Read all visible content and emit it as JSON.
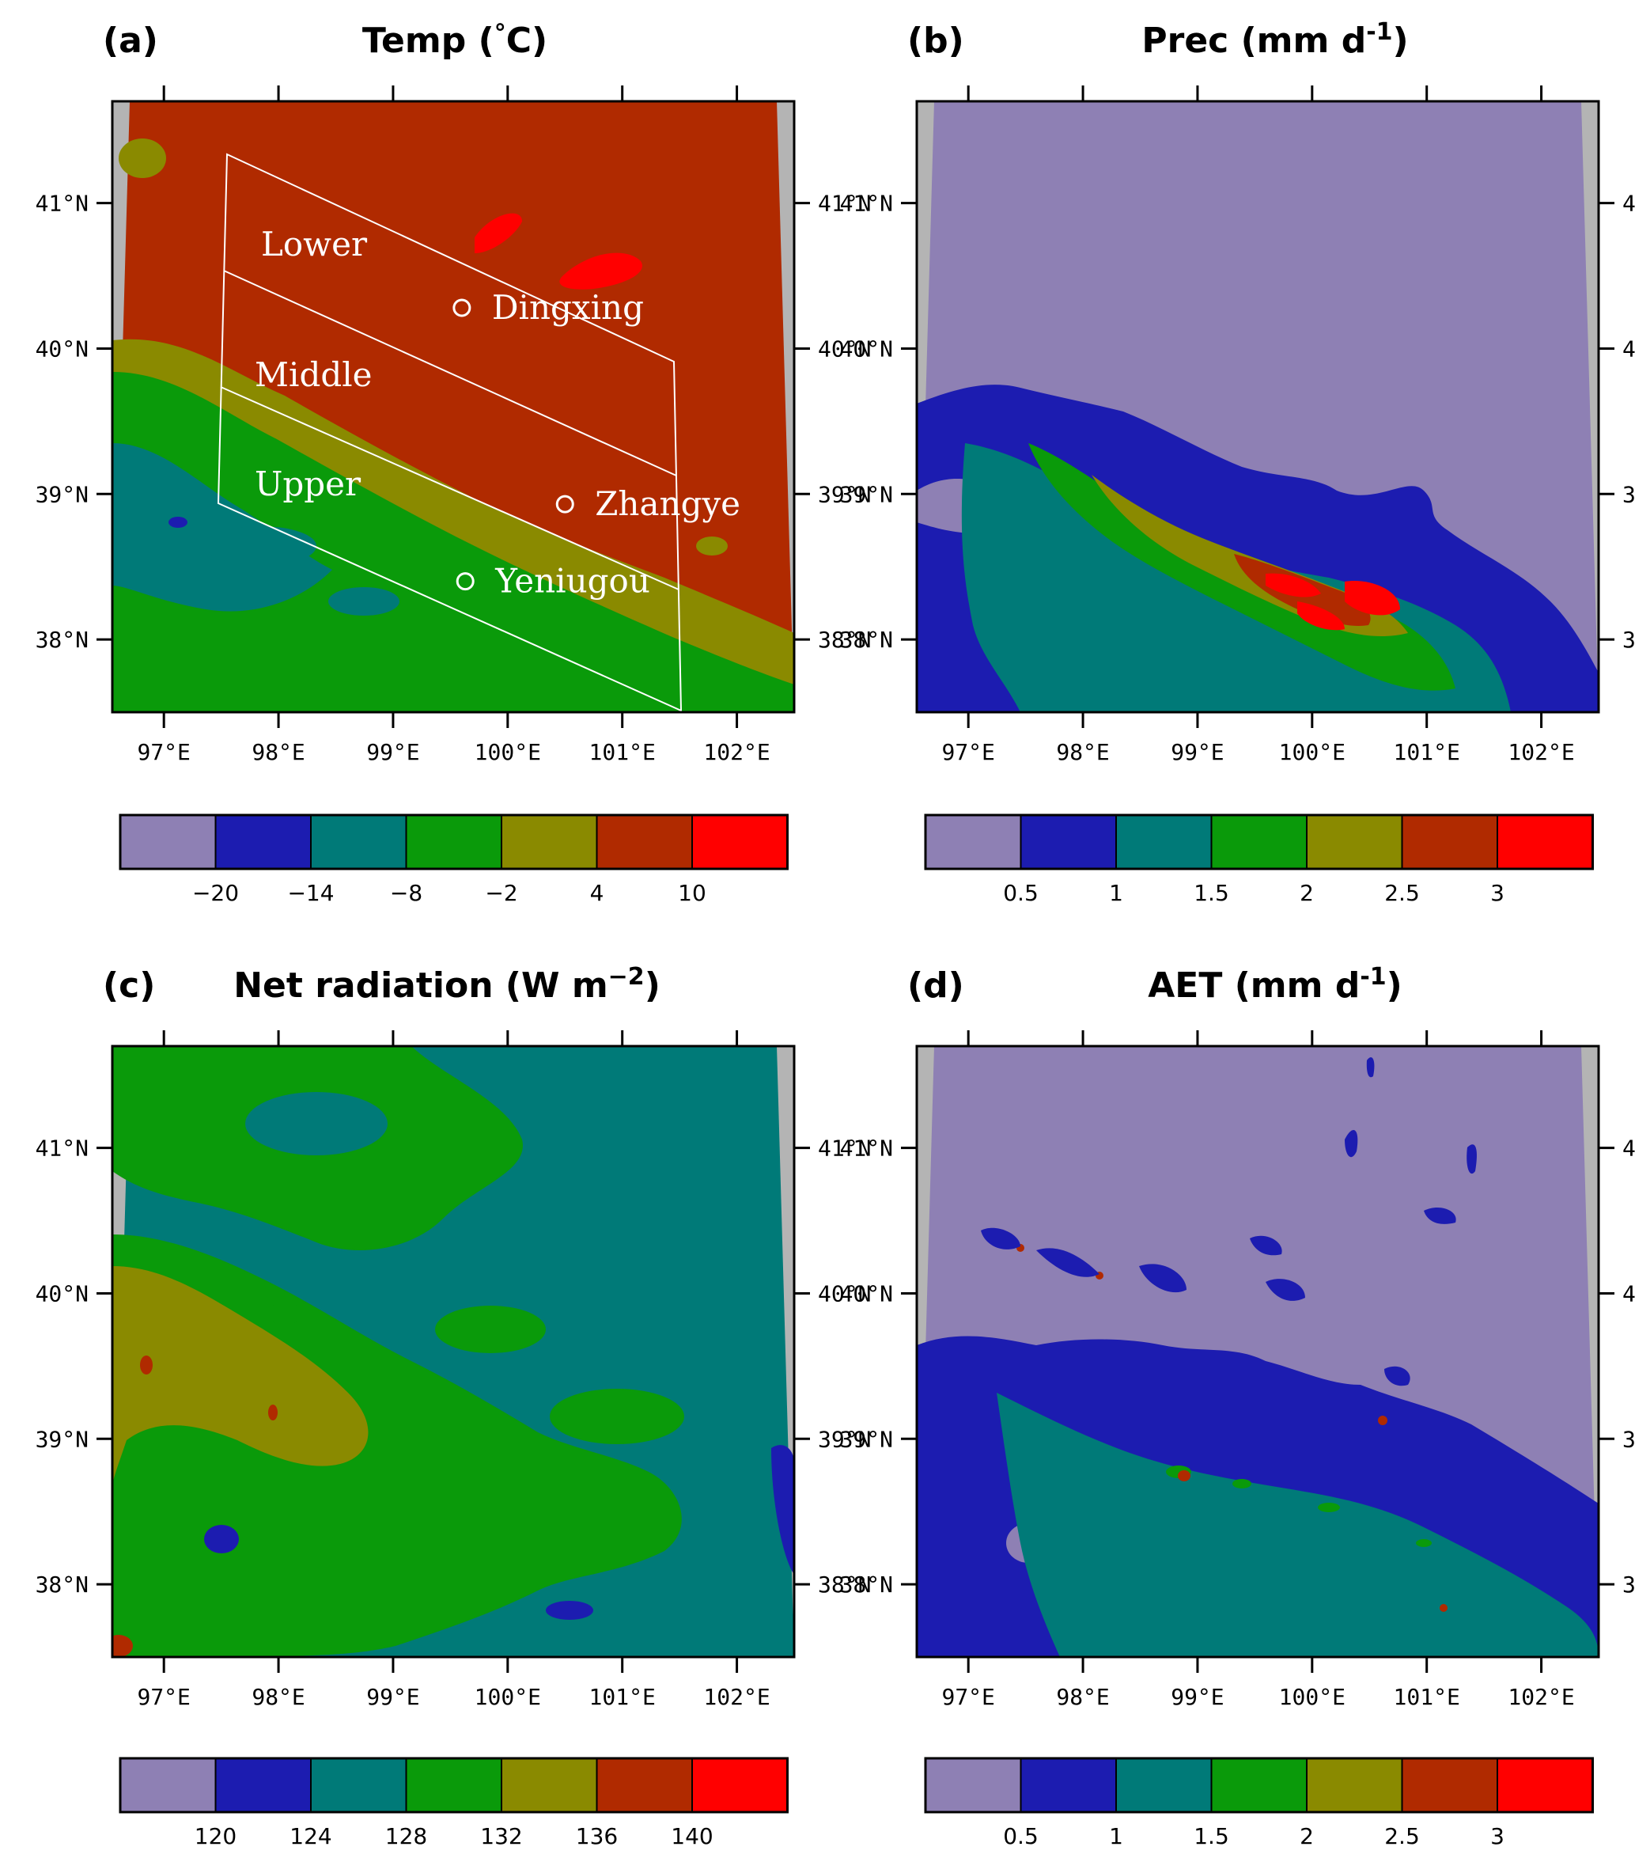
{
  "colors": {
    "lavender": "#8e80b4",
    "blue": "#1c1cb0",
    "teal": "#007a78",
    "green": "#0a9a0a",
    "olive": "#8a8a00",
    "rust": "#b02a00",
    "red": "#ff0000",
    "grey": "#b4b4b4"
  },
  "axes": {
    "x_ticks": [
      "97°E",
      "98°E",
      "99°E",
      "100°E",
      "101°E",
      "102°E"
    ],
    "x_values": [
      97,
      98,
      99,
      100,
      101,
      102
    ],
    "y_ticks": [
      "41°N",
      "40°N",
      "39°N",
      "38°N"
    ],
    "y_values": [
      41,
      40,
      39,
      38
    ],
    "xlim": [
      96.55,
      102.5
    ],
    "ylim": [
      37.5,
      41.7
    ]
  },
  "chart_data": [
    {
      "type": "heatmap",
      "panel": "(a)",
      "title": "Temp (°C)",
      "colorbar": [
        "-20",
        "-14",
        "-8",
        "-2",
        "4",
        "10"
      ],
      "colorbar_values": [
        -20,
        -14,
        -8,
        -2,
        4,
        10
      ],
      "regions": [
        "Lower",
        "Middle",
        "Upper"
      ],
      "sites": [
        {
          "name": "Dingxing",
          "lon": 99.6,
          "lat": 40.28
        },
        {
          "name": "Zhangye",
          "lon": 100.5,
          "lat": 38.93
        },
        {
          "name": "Yeniugou",
          "lon": 99.63,
          "lat": 38.4
        }
      ]
    },
    {
      "type": "heatmap",
      "panel": "(b)",
      "title": "Prec (mm d-1)",
      "colorbar": [
        "0.5",
        "1",
        "1.5",
        "2",
        "2.5",
        "3"
      ],
      "colorbar_values": [
        0.5,
        1,
        1.5,
        2,
        2.5,
        3
      ]
    },
    {
      "type": "heatmap",
      "panel": "(c)",
      "title": "Net radiation (W m-2)",
      "colorbar": [
        "120",
        "124",
        "128",
        "132",
        "136",
        "140"
      ],
      "colorbar_values": [
        120,
        124,
        128,
        132,
        136,
        140
      ]
    },
    {
      "type": "heatmap",
      "panel": "(d)",
      "title": "AET (mm d-1)",
      "colorbar": [
        "0.5",
        "1",
        "1.5",
        "2",
        "2.5",
        "3"
      ],
      "colorbar_values": [
        0.5,
        1,
        1.5,
        2,
        2.5,
        3
      ]
    }
  ],
  "panels": {
    "a": {
      "label": "(a)",
      "title_main": "Temp (",
      "title_deg": "°",
      "title_end": "C)"
    },
    "b": {
      "label": "(b)",
      "title_main": "Prec (mm d",
      "title_sup": "-1",
      "title_end": ")"
    },
    "c": {
      "label": "(c)",
      "title_main": "Net radiation (W m",
      "title_sup": "−2",
      "title_end": ")"
    },
    "d": {
      "label": "(d)",
      "title_main": "AET (mm d",
      "title_sup": "-1",
      "title_end": ")"
    }
  },
  "colorbar_labels": {
    "a": [
      "−20",
      "−14",
      "−8",
      "−2",
      "4",
      "10"
    ],
    "b": [
      "0.5",
      "1",
      "1.5",
      "2",
      "2.5",
      "3"
    ],
    "c": [
      "120",
      "124",
      "128",
      "132",
      "136",
      "140"
    ],
    "d": [
      "0.5",
      "1",
      "1.5",
      "2",
      "2.5",
      "3"
    ]
  }
}
